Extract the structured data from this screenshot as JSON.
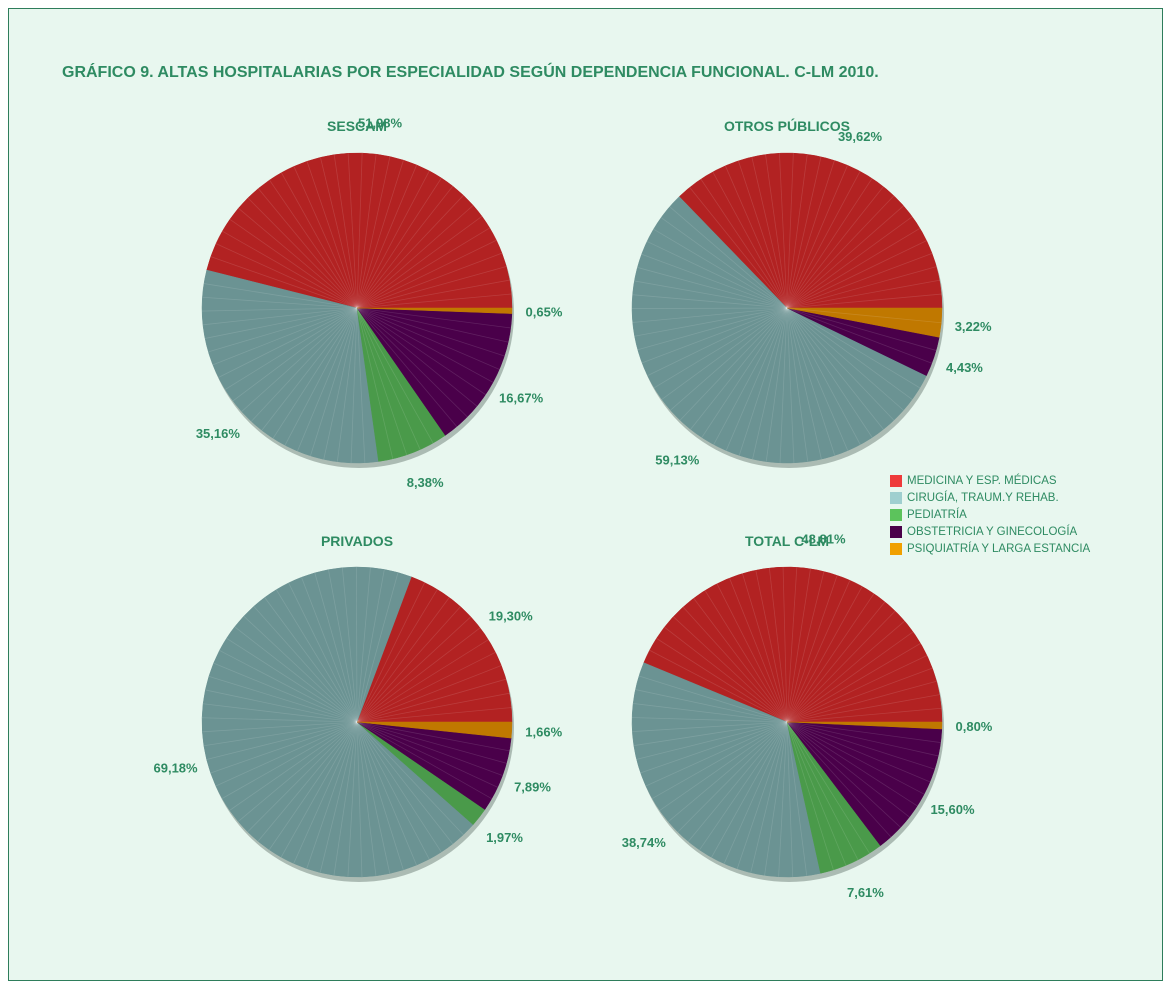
{
  "title": "GRÁFICO 9. ALTAS HOSPITALARIAS POR ESPECIALIDAD SEGÚN DEPENDENCIA FUNCIONAL. C-LM 2010.",
  "legend": [
    {
      "name": "MEDICINA Y ESP. MÉDICAS",
      "color": "#ee3b3b"
    },
    {
      "name": "CIRUGÍA, TRAUM.Y REHAB.",
      "color": "#9fcfcf"
    },
    {
      "name": "PEDIATRÍA",
      "color": "#5cc35c"
    },
    {
      "name": "OBSTETRICIA Y GINECOLOGÍA",
      "color": "#4a004a"
    },
    {
      "name": "PSIQUIATRÍA Y LARGA ESTANCIA",
      "color": "#f0a000"
    }
  ],
  "chart_data": [
    {
      "type": "pie",
      "title": "SESCAM",
      "categories": [
        "MEDICINA Y ESP. MÉDICAS",
        "CIRUGÍA, TRAUM.Y REHAB.",
        "PEDIATRÍA",
        "OBSTETRICIA Y GINECOLOGÍA",
        "PSIQUIATRÍA Y LARGA ESTANCIA"
      ],
      "values": [
        51.98,
        35.16,
        8.38,
        16.67,
        0.65
      ],
      "labels": [
        "51,98%",
        "35,16%",
        "8,38%",
        "16,67%",
        "0,65%"
      ]
    },
    {
      "type": "pie",
      "title": "OTROS PÚBLICOS",
      "categories": [
        "MEDICINA Y ESP. MÉDICAS",
        "CIRUGÍA, TRAUM.Y REHAB.",
        "OBSTETRICIA Y GINECOLOGÍA",
        "PSIQUIATRÍA Y LARGA ESTANCIA"
      ],
      "values": [
        39.62,
        59.13,
        4.43,
        3.22
      ],
      "labels": [
        "39,62%",
        "59,13%",
        "4,43%",
        "3,22%"
      ]
    },
    {
      "type": "pie",
      "title": "PRIVADOS",
      "categories": [
        "MEDICINA Y ESP. MÉDICAS",
        "CIRUGÍA, TRAUM.Y REHAB.",
        "PEDIATRÍA",
        "OBSTETRICIA Y GINECOLOGÍA",
        "PSIQUIATRÍA Y LARGA ESTANCIA"
      ],
      "values": [
        19.3,
        69.18,
        1.97,
        7.89,
        1.66
      ],
      "labels": [
        "19,30%",
        "69,18%",
        "1,97%",
        "7,89%",
        "1,66%"
      ]
    },
    {
      "type": "pie",
      "title": "TOTAL C-LM",
      "categories": [
        "MEDICINA Y ESP. MÉDICAS",
        "CIRUGÍA, TRAUM.Y REHAB.",
        "PEDIATRÍA",
        "OBSTETRICIA Y GINECOLOGÍA",
        "PSIQUIATRÍA Y LARGA ESTANCIA"
      ],
      "values": [
        48.81,
        38.74,
        7.61,
        15.6,
        0.8
      ],
      "labels": [
        "48,81%",
        "38,74%",
        "7,61%",
        "15,60%",
        "0,80%"
      ]
    }
  ],
  "slice_colors": {
    "MEDICINA Y ESP. MÉDICAS": "#b22222",
    "CIRUGÍA, TRAUM.Y REHAB.": "#6b9393",
    "PEDIATRÍA": "#4a9a4a",
    "OBSTETRICIA Y GINECOLOGÍA": "#4a004a",
    "PSIQUIATRÍA Y LARGA ESTANCIA": "#c07800"
  }
}
